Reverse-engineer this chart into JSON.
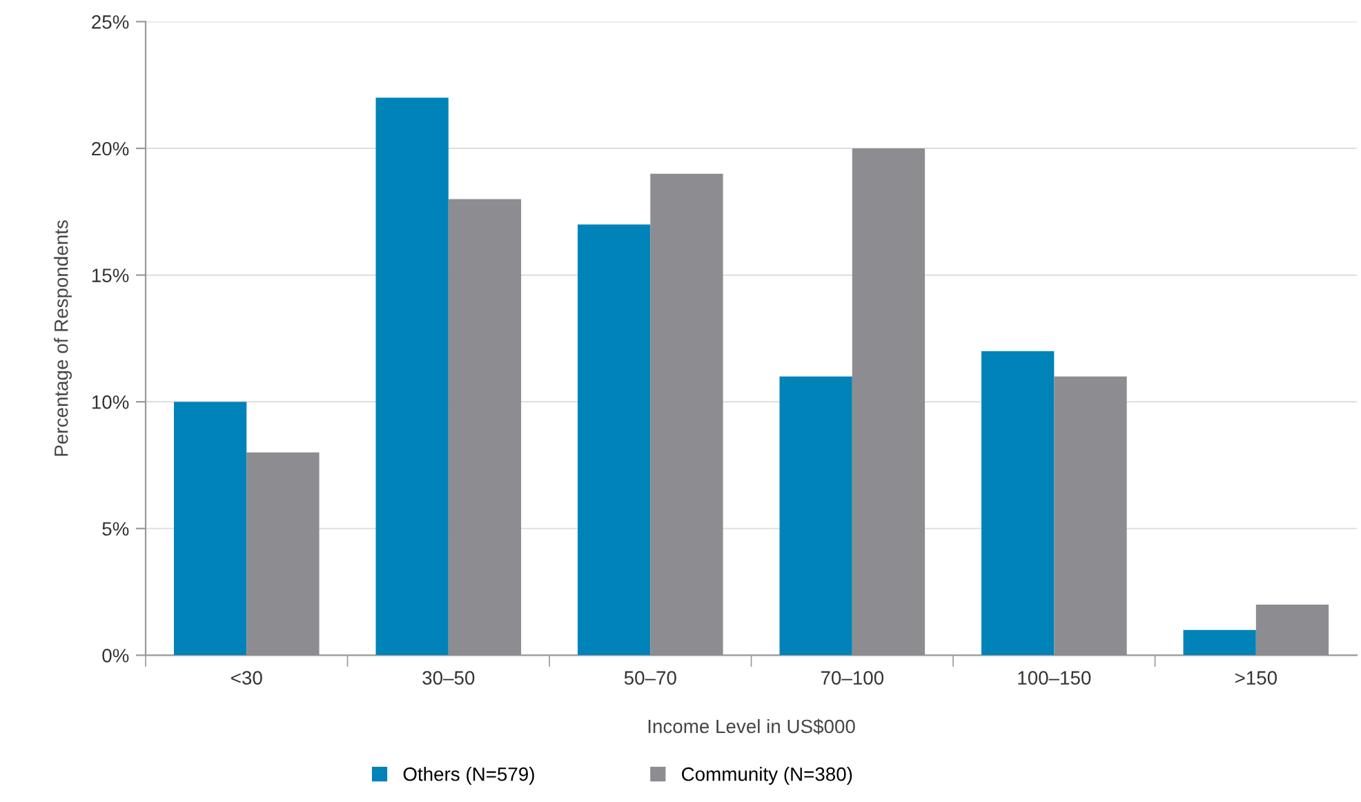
{
  "chart_data": {
    "type": "bar",
    "xlabel": "Income Level in US$000",
    "ylabel": "Percentage of Respondents",
    "categories": [
      "<30",
      "30–50",
      "50–70",
      "70–100",
      "100–150",
      ">150"
    ],
    "series": [
      {
        "name": "Others (N=579)",
        "color": "#0083b8",
        "values": [
          10,
          22,
          17,
          11,
          12,
          1
        ]
      },
      {
        "name": "Community (N=380)",
        "color": "#8c8c91",
        "values": [
          8,
          18,
          19,
          20,
          11,
          2
        ]
      }
    ],
    "ylim": [
      0,
      25
    ],
    "yticks": [
      {
        "value": 0,
        "label": "0%"
      },
      {
        "value": 5,
        "label": "5%"
      },
      {
        "value": 10,
        "label": "10%"
      },
      {
        "value": 15,
        "label": "15%"
      },
      {
        "value": 20,
        "label": "20%"
      },
      {
        "value": 25,
        "label": "25%"
      }
    ],
    "grid": "y",
    "legend": "bottom"
  }
}
